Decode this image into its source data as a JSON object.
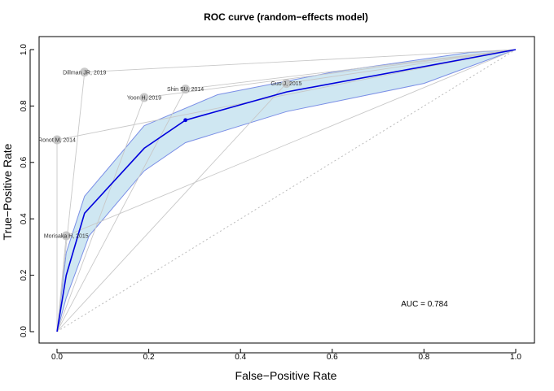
{
  "chart_data": {
    "type": "line",
    "title": "ROC curve (random−effects model)",
    "xlabel": "False−Positive Rate",
    "ylabel": "True−Positive Rate",
    "xlim": [
      0,
      1
    ],
    "ylim": [
      0,
      1
    ],
    "xticks": [
      "0.0",
      "0.2",
      "0.4",
      "0.6",
      "0.8",
      "1.0"
    ],
    "yticks": [
      "0.0",
      "0.2",
      "0.4",
      "0.6",
      "0.8",
      "1.0"
    ],
    "grid": false,
    "auc_label": "AUC = 0.784",
    "summary_curve": {
      "x": [
        0,
        0.02,
        0.06,
        0.19,
        0.28,
        0.5,
        1.0
      ],
      "y": [
        0,
        0.2,
        0.42,
        0.65,
        0.75,
        0.85,
        1.0
      ],
      "color": "#0000dd"
    },
    "summary_point": {
      "x": 0.28,
      "y": 0.75
    },
    "ci_upper": {
      "x": [
        0,
        0.02,
        0.06,
        0.19,
        0.35,
        0.6,
        0.9,
        1.0
      ],
      "y": [
        0,
        0.28,
        0.48,
        0.73,
        0.84,
        0.92,
        0.99,
        1.0
      ]
    },
    "ci_lower": {
      "x": [
        0,
        0.02,
        0.07,
        0.19,
        0.28,
        0.5,
        0.8,
        1.0
      ],
      "y": [
        0,
        0.12,
        0.34,
        0.57,
        0.67,
        0.78,
        0.88,
        1.0
      ]
    },
    "ci_fill_color": "#cfe7f2",
    "ci_stroke_color": "#7b8fe6",
    "studies": [
      {
        "name": "Dillman JR, 2019",
        "x": 0.06,
        "y": 0.92
      },
      {
        "name": "Shin SU, 2014",
        "x": 0.28,
        "y": 0.86
      },
      {
        "name": "Yoon H, 2019",
        "x": 0.19,
        "y": 0.83
      },
      {
        "name": "Guo J, 2015",
        "x": 0.5,
        "y": 0.88
      },
      {
        "name": "Ronot M, 2014",
        "x": 0.0,
        "y": 0.68
      },
      {
        "name": "Morisaka H, 2015",
        "x": 0.02,
        "y": 0.34
      }
    ],
    "study_color": "#bfbfbf"
  }
}
